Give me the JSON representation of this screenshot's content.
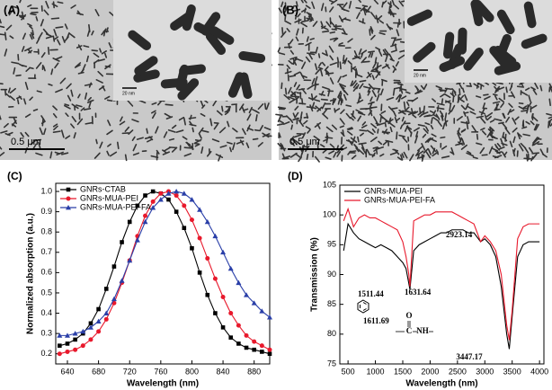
{
  "images": [
    {
      "label": "(A)",
      "scale_bar": "0.5 μm",
      "inset_scale": "20 nm"
    },
    {
      "label": "(B)",
      "scale_bar": "0.5 μm",
      "inset_scale": "20 nm"
    }
  ],
  "chart_data": [
    {
      "type": "line",
      "panel_label": "(C)",
      "xlabel": "Wavelength (nm)",
      "ylabel": "Normalized absorption (a.u.)",
      "x": [
        630,
        640,
        650,
        660,
        670,
        680,
        690,
        700,
        710,
        720,
        730,
        740,
        750,
        760,
        770,
        780,
        790,
        800,
        810,
        820,
        830,
        840,
        850,
        860,
        870,
        880,
        890,
        900
      ],
      "xlim": [
        625,
        900
      ],
      "xticks": [
        640,
        680,
        720,
        760,
        800,
        840,
        880
      ],
      "ylim": [
        0.15,
        1.04
      ],
      "yticks": [
        0.2,
        0.3,
        0.4,
        0.5,
        0.6,
        0.7,
        0.8,
        0.9,
        {
          "value": 1,
          "label": "1.0"
        }
      ],
      "legend": "upper left",
      "markers": true,
      "series": [
        {
          "name": "GNRs-CTAB",
          "color": "#000000",
          "marker": "square",
          "values": [
            0.24,
            0.25,
            0.27,
            0.3,
            0.35,
            0.42,
            0.52,
            0.63,
            0.75,
            0.85,
            0.93,
            0.98,
            1.0,
            0.99,
            0.96,
            0.9,
            0.82,
            0.72,
            0.6,
            0.49,
            0.4,
            0.33,
            0.28,
            0.25,
            0.23,
            0.22,
            0.21,
            0.2
          ]
        },
        {
          "name": "GNRs-MUA-PEI",
          "color": "#e8192c",
          "marker": "circle",
          "values": [
            0.2,
            0.21,
            0.22,
            0.24,
            0.27,
            0.31,
            0.37,
            0.45,
            0.55,
            0.66,
            0.78,
            0.88,
            0.95,
            0.99,
            1.0,
            0.98,
            0.93,
            0.86,
            0.77,
            0.67,
            0.57,
            0.48,
            0.4,
            0.34,
            0.29,
            0.26,
            0.24,
            0.22
          ]
        },
        {
          "name": "GNRs-MUA-PEI-FA",
          "color": "#2a3fa8",
          "marker": "triangle",
          "values": [
            0.29,
            0.29,
            0.3,
            0.31,
            0.33,
            0.36,
            0.4,
            0.47,
            0.56,
            0.66,
            0.76,
            0.85,
            0.92,
            0.96,
            0.99,
            1.0,
            0.99,
            0.96,
            0.91,
            0.85,
            0.78,
            0.7,
            0.62,
            0.55,
            0.49,
            0.45,
            0.41,
            0.38
          ]
        }
      ]
    },
    {
      "type": "line",
      "panel_label": "(D)",
      "xlabel": "Wavelength (nm)",
      "ylabel": "Transmission (%)",
      "x": [
        420,
        500,
        600,
        700,
        800,
        900,
        1000,
        1100,
        1200,
        1300,
        1400,
        1500,
        1560,
        1611,
        1631,
        1700,
        1800,
        1900,
        2000,
        2100,
        2200,
        2300,
        2400,
        2500,
        2600,
        2700,
        2800,
        2923,
        3000,
        3100,
        3200,
        3300,
        3400,
        3447,
        3500,
        3600,
        3700,
        3800,
        3900,
        4000
      ],
      "xlim": [
        350,
        4080
      ],
      "xticks": [
        500,
        1000,
        1500,
        2000,
        2500,
        3000,
        3500,
        4000
      ],
      "ylim": [
        75,
        105
      ],
      "yticks": [
        75,
        80,
        85,
        90,
        95,
        100,
        105
      ],
      "legend": "upper left",
      "markers": false,
      "series": [
        {
          "name": "GNRs-MUA-PEI",
          "color": "#000000",
          "values": [
            94,
            98.5,
            97,
            96,
            95.5,
            95,
            94.5,
            95,
            94.5,
            94,
            93,
            92,
            91,
            88.5,
            87.5,
            94,
            95,
            95.5,
            96,
            96.5,
            97,
            97,
            97.5,
            97.5,
            97.5,
            97,
            97,
            95.5,
            96,
            95,
            93,
            88,
            80,
            77.5,
            83,
            93,
            95,
            95.5,
            95.5,
            95.5
          ]
        },
        {
          "name": "GNRs-MUA-PEI-FA",
          "color": "#e8192c",
          "values": [
            99,
            101,
            98,
            99.5,
            100,
            99.5,
            99.5,
            99,
            98.5,
            98,
            97.5,
            95.5,
            93,
            90,
            88,
            99,
            99.5,
            100,
            100,
            100.5,
            100.5,
            100.5,
            100.5,
            100,
            99.5,
            99,
            98.5,
            95.5,
            96.5,
            95.5,
            94,
            90,
            81.5,
            79,
            84,
            96,
            98,
            98.5,
            98.5,
            98.5
          ]
        }
      ],
      "annotations": [
        "1511.44",
        "1631.64",
        "1611.69",
        "2923.14",
        "3447.17",
        "O",
        "C",
        "NH"
      ]
    }
  ]
}
